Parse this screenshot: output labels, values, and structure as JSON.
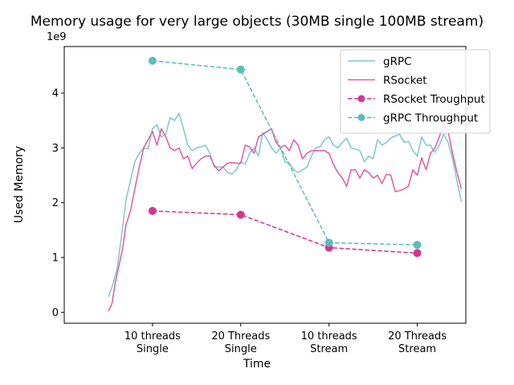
{
  "chart_data": {
    "type": "line",
    "title": "Memory usage for very large objects (30MB single 100MB stream)",
    "xlabel": "Time",
    "ylabel": "Used Memory",
    "y_offset_label": "1e9",
    "ylim": [
      -0.2,
      4.85
    ],
    "xlim": [
      -0.5,
      4.05
    ],
    "yticks": [
      0,
      1,
      2,
      3,
      4
    ],
    "xticks": [
      {
        "value": 0.5,
        "lines": [
          "10 threads",
          "Single"
        ]
      },
      {
        "value": 1.5,
        "lines": [
          "20 Threads",
          "Single"
        ]
      },
      {
        "value": 2.5,
        "lines": [
          "10 threads",
          "Stream"
        ]
      },
      {
        "value": 3.5,
        "lines": [
          "20 Threads",
          "Stream"
        ]
      }
    ],
    "grid": false,
    "legend_position": "top-right",
    "series": [
      {
        "name": "gRPC",
        "color": "#7fc7c9",
        "style": "solid",
        "marker": false,
        "x": [
          0.0,
          0.05,
          0.1,
          0.15,
          0.2,
          0.25,
          0.3,
          0.35,
          0.4,
          0.45,
          0.5,
          0.55,
          0.6,
          0.65,
          0.7,
          0.75,
          0.8,
          0.85,
          0.9,
          0.95,
          1.0,
          1.05,
          1.1,
          1.15,
          1.2,
          1.25,
          1.3,
          1.35,
          1.4,
          1.45,
          1.5,
          1.55,
          1.6,
          1.65,
          1.7,
          1.75,
          1.8,
          1.85,
          1.9,
          1.95,
          2.0,
          2.05,
          2.1,
          2.15,
          2.2,
          2.25,
          2.3,
          2.35,
          2.4,
          2.45,
          2.5,
          2.55,
          2.6,
          2.65,
          2.7,
          2.75,
          2.8,
          2.85,
          2.9,
          2.95,
          3.0,
          3.05,
          3.1,
          3.15,
          3.2,
          3.25,
          3.3,
          3.35,
          3.4,
          3.45,
          3.5,
          3.55,
          3.6,
          3.65,
          3.7,
          3.75,
          3.8,
          3.85,
          3.9,
          3.95,
          4.0
        ],
        "y": [
          0.28,
          0.5,
          0.8,
          1.4,
          2.05,
          2.4,
          2.75,
          2.9,
          3.0,
          2.98,
          3.35,
          3.42,
          3.2,
          3.25,
          3.55,
          3.5,
          3.63,
          3.35,
          3.05,
          2.95,
          3.0,
          3.02,
          3.05,
          2.9,
          2.65,
          2.65,
          2.65,
          2.55,
          2.52,
          2.6,
          2.75,
          2.7,
          2.9,
          3.0,
          2.85,
          3.28,
          3.15,
          3.0,
          2.9,
          3.0,
          2.75,
          2.72,
          2.6,
          2.55,
          2.6,
          2.65,
          2.85,
          3.0,
          3.02,
          3.15,
          3.2,
          3.05,
          3.0,
          3.1,
          3.18,
          3.0,
          2.98,
          2.95,
          2.75,
          2.85,
          2.8,
          3.15,
          3.05,
          3.1,
          3.18,
          3.22,
          3.25,
          3.1,
          3.12,
          2.95,
          2.85,
          3.2,
          3.05,
          3.05,
          2.92,
          3.05,
          3.25,
          3.1,
          2.8,
          2.4,
          2.02
        ]
      },
      {
        "name": "RSocket",
        "color": "#e35a9f",
        "style": "solid",
        "marker": false,
        "x": [
          0.0,
          0.04,
          0.08,
          0.12,
          0.16,
          0.2,
          0.25,
          0.3,
          0.35,
          0.4,
          0.45,
          0.5,
          0.55,
          0.6,
          0.65,
          0.7,
          0.75,
          0.8,
          0.85,
          0.9,
          0.95,
          1.0,
          1.05,
          1.1,
          1.15,
          1.2,
          1.25,
          1.3,
          1.35,
          1.4,
          1.45,
          1.5,
          1.55,
          1.6,
          1.65,
          1.7,
          1.75,
          1.8,
          1.85,
          1.9,
          1.95,
          2.0,
          2.05,
          2.1,
          2.15,
          2.2,
          2.25,
          2.3,
          2.35,
          2.4,
          2.45,
          2.5,
          2.55,
          2.6,
          2.65,
          2.7,
          2.75,
          2.8,
          2.85,
          2.9,
          2.95,
          3.0,
          3.05,
          3.1,
          3.15,
          3.2,
          3.25,
          3.3,
          3.35,
          3.4,
          3.45,
          3.5,
          3.55,
          3.6,
          3.65,
          3.7,
          3.75,
          3.8,
          3.85,
          3.9,
          3.95,
          4.0
        ],
        "y": [
          0.02,
          0.15,
          0.55,
          0.85,
          1.15,
          1.6,
          1.85,
          2.25,
          2.65,
          3.0,
          3.15,
          3.3,
          3.05,
          3.35,
          3.2,
          3.0,
          2.95,
          3.0,
          2.8,
          2.85,
          2.62,
          2.72,
          2.8,
          2.85,
          2.85,
          2.68,
          2.58,
          2.65,
          2.72,
          2.73,
          2.72,
          2.72,
          3.05,
          3.02,
          2.9,
          3.2,
          3.25,
          3.3,
          3.35,
          3.1,
          3.0,
          3.05,
          2.95,
          3.15,
          3.05,
          2.8,
          2.9,
          2.95,
          2.95,
          2.95,
          2.95,
          2.9,
          2.7,
          2.55,
          2.45,
          2.3,
          2.6,
          2.6,
          2.45,
          2.6,
          2.55,
          2.45,
          2.5,
          2.35,
          2.52,
          2.5,
          2.2,
          2.22,
          2.25,
          2.3,
          2.6,
          2.5,
          2.82,
          2.6,
          2.9,
          3.0,
          3.2,
          3.45,
          3.3,
          2.9,
          2.55,
          2.25
        ]
      },
      {
        "name": "RSocket Troughput",
        "color": "#d63591",
        "style": "dashed",
        "marker": true,
        "x": [
          0.5,
          1.5,
          2.5,
          3.5
        ],
        "y": [
          1.85,
          1.78,
          1.18,
          1.08
        ]
      },
      {
        "name": "gRPC Throughput",
        "color": "#5bbcbd",
        "style": "dashed",
        "marker": true,
        "x": [
          0.5,
          1.5,
          2.5,
          3.5
        ],
        "y": [
          4.59,
          4.43,
          1.27,
          1.23
        ]
      }
    ]
  }
}
